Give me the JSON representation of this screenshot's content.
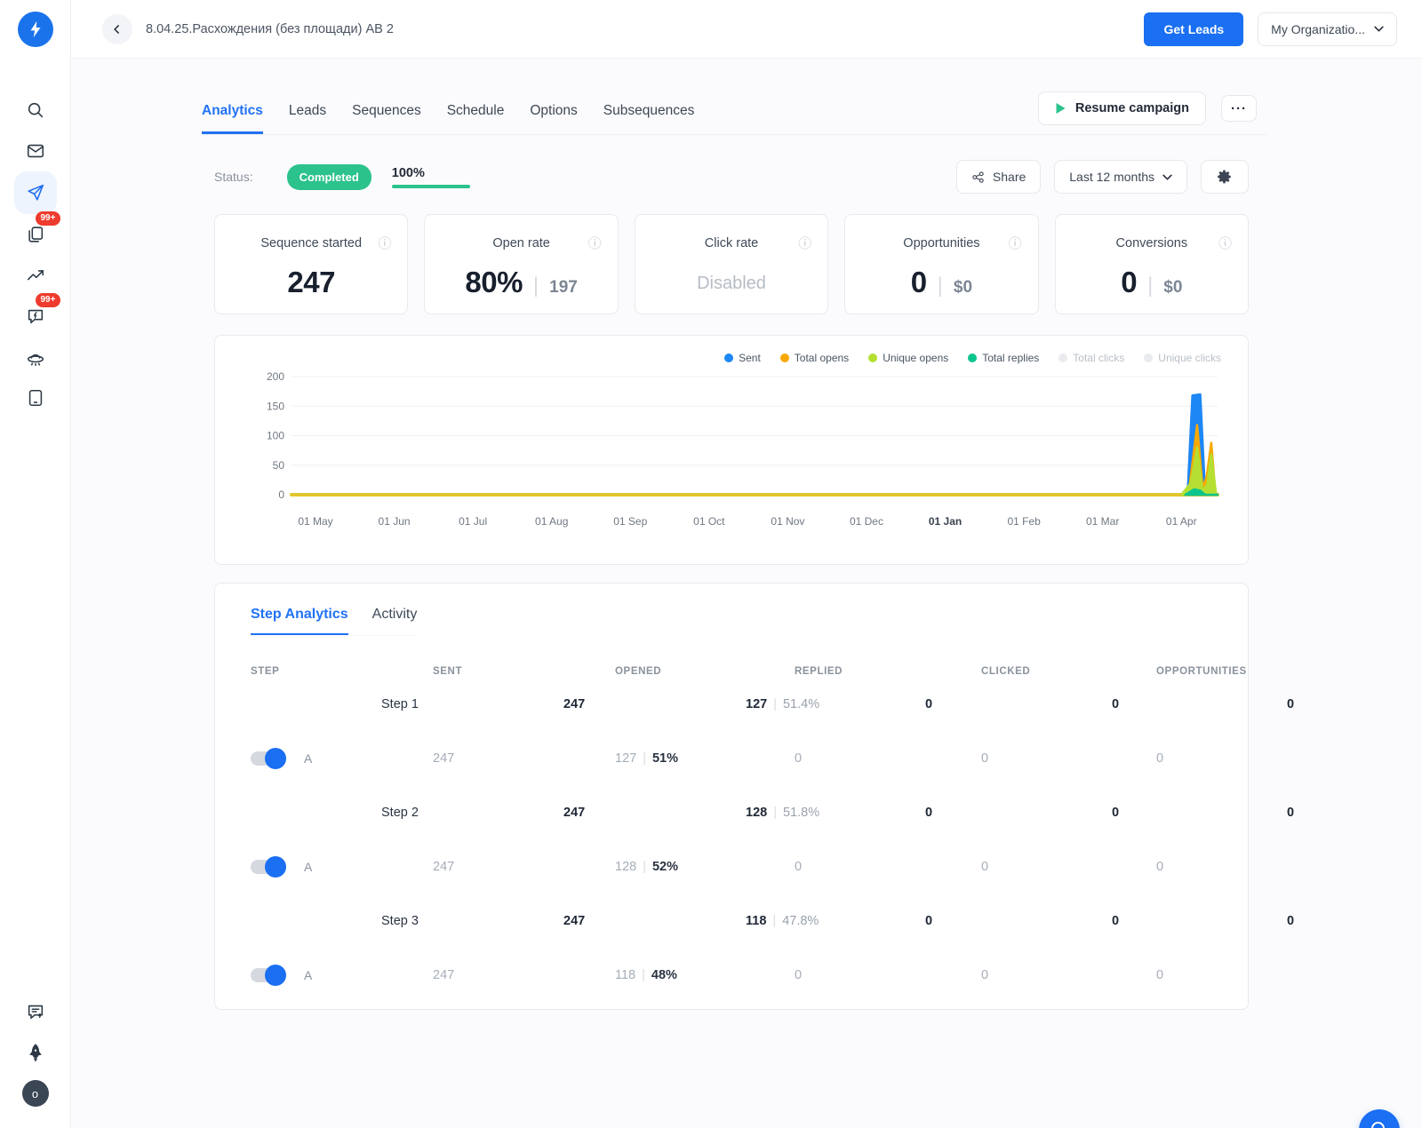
{
  "topbar": {
    "title": "8.04.25.Расхождения (без площади) АВ 2",
    "get_leads_label": "Get Leads",
    "org_label": "My Organizatio..."
  },
  "sidebar": {
    "top_items": [
      {
        "icon": "search-icon",
        "active": false,
        "badge": null
      },
      {
        "icon": "mail-icon",
        "active": false,
        "badge": null
      },
      {
        "icon": "send-icon",
        "active": true,
        "badge": null
      },
      {
        "icon": "pages-icon",
        "active": false,
        "badge": "99+"
      },
      {
        "icon": "chart-icon",
        "active": false,
        "badge": null
      },
      {
        "icon": "chat-bolt-icon",
        "active": false,
        "badge": "99+"
      },
      {
        "icon": "ufo-icon",
        "active": false,
        "badge": null
      },
      {
        "icon": "tablet-icon",
        "active": false,
        "badge": null
      }
    ],
    "bottom_items": [
      {
        "icon": "chat-new-icon",
        "active": false,
        "badge": null
      },
      {
        "icon": "rocket-icon",
        "active": false,
        "badge": null
      },
      {
        "icon": "avatar",
        "active": false,
        "badge": null,
        "label": "o"
      }
    ]
  },
  "tabs": {
    "items": [
      {
        "label": "Analytics",
        "active": true
      },
      {
        "label": "Leads",
        "active": false
      },
      {
        "label": "Sequences",
        "active": false
      },
      {
        "label": "Schedule",
        "active": false
      },
      {
        "label": "Options",
        "active": false
      },
      {
        "label": "Subsequences",
        "active": false
      }
    ],
    "resume_label": "Resume campaign",
    "more_label": "···"
  },
  "status_row": {
    "label": "Status:",
    "status": "Completed",
    "progress": "100%",
    "share_label": "Share",
    "range_label": "Last 12 months"
  },
  "stat_cards": [
    {
      "title": "Sequence started",
      "value": "247",
      "secondary": null,
      "disabled_text": null
    },
    {
      "title": "Open rate",
      "value": "80%",
      "secondary": "197",
      "disabled_text": null
    },
    {
      "title": "Click rate",
      "value": null,
      "secondary": null,
      "disabled_text": "Disabled"
    },
    {
      "title": "Opportunities",
      "value": "0",
      "secondary": "$0",
      "disabled_text": null
    },
    {
      "title": "Conversions",
      "value": "0",
      "secondary": "$0",
      "disabled_text": null
    }
  ],
  "chart_data": {
    "type": "area",
    "x_ticks": [
      "01 May",
      "01 Jun",
      "01 Jul",
      "01 Aug",
      "01 Sep",
      "01 Oct",
      "01 Nov",
      "01 Dec",
      "01 Jan",
      "01 Feb",
      "01 Mar",
      "01 Apr"
    ],
    "bold_x_tick": "01 Jan",
    "y_ticks": [
      0,
      50,
      100,
      150,
      200
    ],
    "ylim": [
      0,
      200
    ],
    "baseline_color": "#e2c62e",
    "series": [
      {
        "name": "Sent",
        "color": "#1d87f5",
        "enabled": true,
        "points": [
          [
            11.0,
            0
          ],
          [
            11.08,
            4
          ],
          [
            11.14,
            168
          ],
          [
            11.24,
            170
          ],
          [
            11.3,
            6
          ],
          [
            11.34,
            0
          ],
          [
            11.46,
            0
          ]
        ]
      },
      {
        "name": "Total opens",
        "color": "#f7a902",
        "enabled": true,
        "points": [
          [
            11.0,
            0
          ],
          [
            11.1,
            10
          ],
          [
            11.2,
            118
          ],
          [
            11.27,
            12
          ],
          [
            11.32,
            30
          ],
          [
            11.38,
            88
          ],
          [
            11.43,
            5
          ],
          [
            11.46,
            0
          ]
        ]
      },
      {
        "name": "Unique opens",
        "color": "#b5e033",
        "enabled": true,
        "points": [
          [
            11.0,
            0
          ],
          [
            11.12,
            20
          ],
          [
            11.2,
            80
          ],
          [
            11.27,
            6
          ],
          [
            11.33,
            18
          ],
          [
            11.38,
            68
          ],
          [
            11.44,
            2
          ],
          [
            11.46,
            0
          ]
        ]
      },
      {
        "name": "Total replies",
        "color": "#0cc58e",
        "enabled": true,
        "points": [
          [
            11.05,
            0
          ],
          [
            11.16,
            9
          ],
          [
            11.24,
            7
          ],
          [
            11.3,
            0
          ],
          [
            11.46,
            0
          ]
        ]
      },
      {
        "name": "Total clicks",
        "color": "#e9ebee",
        "enabled": false,
        "points": []
      },
      {
        "name": "Unique clicks",
        "color": "#e9ebee",
        "enabled": false,
        "points": []
      }
    ]
  },
  "step_analytics": {
    "tabs": [
      {
        "label": "Step Analytics",
        "active": true
      },
      {
        "label": "Activity",
        "active": false
      }
    ],
    "columns": [
      "STEP",
      "SENT",
      "OPENED",
      "REPLIED",
      "CLICKED",
      "OPPORTUNITIES"
    ],
    "rows": [
      {
        "kind": "step",
        "label": "Step 1",
        "sent": "247",
        "opened": "127",
        "opened_pct": "51.4%",
        "replied": "0",
        "clicked": "0",
        "opportunities": "0"
      },
      {
        "kind": "variant",
        "label": "A",
        "toggle_on": true,
        "sent": "247",
        "opened": "127",
        "opened_pct": "51%",
        "replied": "0",
        "clicked": "0",
        "opportunities": "0"
      },
      {
        "kind": "step",
        "label": "Step 2",
        "sent": "247",
        "opened": "128",
        "opened_pct": "51.8%",
        "replied": "0",
        "clicked": "0",
        "opportunities": "0"
      },
      {
        "kind": "variant",
        "label": "A",
        "toggle_on": true,
        "sent": "247",
        "opened": "128",
        "opened_pct": "52%",
        "replied": "0",
        "clicked": "0",
        "opportunities": "0"
      },
      {
        "kind": "step",
        "label": "Step 3",
        "sent": "247",
        "opened": "118",
        "opened_pct": "47.8%",
        "replied": "0",
        "clicked": "0",
        "opportunities": "0"
      },
      {
        "kind": "variant",
        "label": "A",
        "toggle_on": true,
        "sent": "247",
        "opened": "118",
        "opened_pct": "48%",
        "replied": "0",
        "clicked": "0",
        "opportunities": "0"
      }
    ]
  },
  "colors": {
    "primary_blue": "#1a6ff2",
    "green": "#2cc28c",
    "badge_red": "#ee3b2d"
  }
}
